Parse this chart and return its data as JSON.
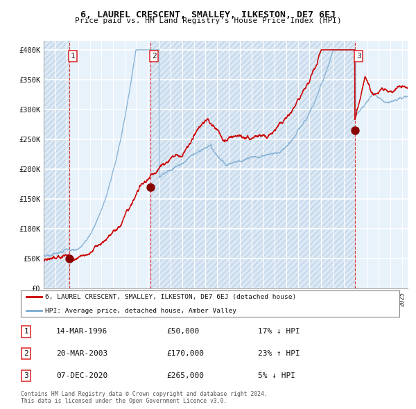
{
  "title": "6, LAUREL CRESCENT, SMALLEY, ILKESTON, DE7 6EJ",
  "subtitle": "Price paid vs. HM Land Registry's House Price Index (HPI)",
  "ylabel_ticks": [
    "£0",
    "£50K",
    "£100K",
    "£150K",
    "£200K",
    "£250K",
    "£300K",
    "£350K",
    "£400K"
  ],
  "ytick_vals": [
    0,
    50000,
    100000,
    150000,
    200000,
    250000,
    300000,
    350000,
    400000
  ],
  "ylim": [
    0,
    415000
  ],
  "xlim_start": 1994.0,
  "xlim_end": 2025.5,
  "sale_dates": [
    1996.21,
    2003.22,
    2020.93
  ],
  "sale_prices": [
    50000,
    170000,
    265000
  ],
  "legend_line1": "6, LAUREL CRESCENT, SMALLEY, ILKESTON, DE7 6EJ (detached house)",
  "legend_line2": "HPI: Average price, detached house, Amber Valley",
  "table_rows": [
    [
      "1",
      "14-MAR-1996",
      "£50,000",
      "17% ↓ HPI"
    ],
    [
      "2",
      "20-MAR-2003",
      "£170,000",
      "23% ↑ HPI"
    ],
    [
      "3",
      "07-DEC-2020",
      "£265,000",
      "5% ↓ HPI"
    ]
  ],
  "footer": "Contains HM Land Registry data © Crown copyright and database right 2024.\nThis data is licensed under the Open Government Licence v3.0.",
  "bg_color": "#dce9f5",
  "bg_light": "#e8f2fb",
  "hatch_color": "#b0c8e0",
  "red_line_color": "#cc0000",
  "blue_line_color": "#7aaad0",
  "dot_color": "#880000",
  "vline_color": "#dd2222",
  "grid_color": "#ffffff",
  "text_color": "#111111"
}
